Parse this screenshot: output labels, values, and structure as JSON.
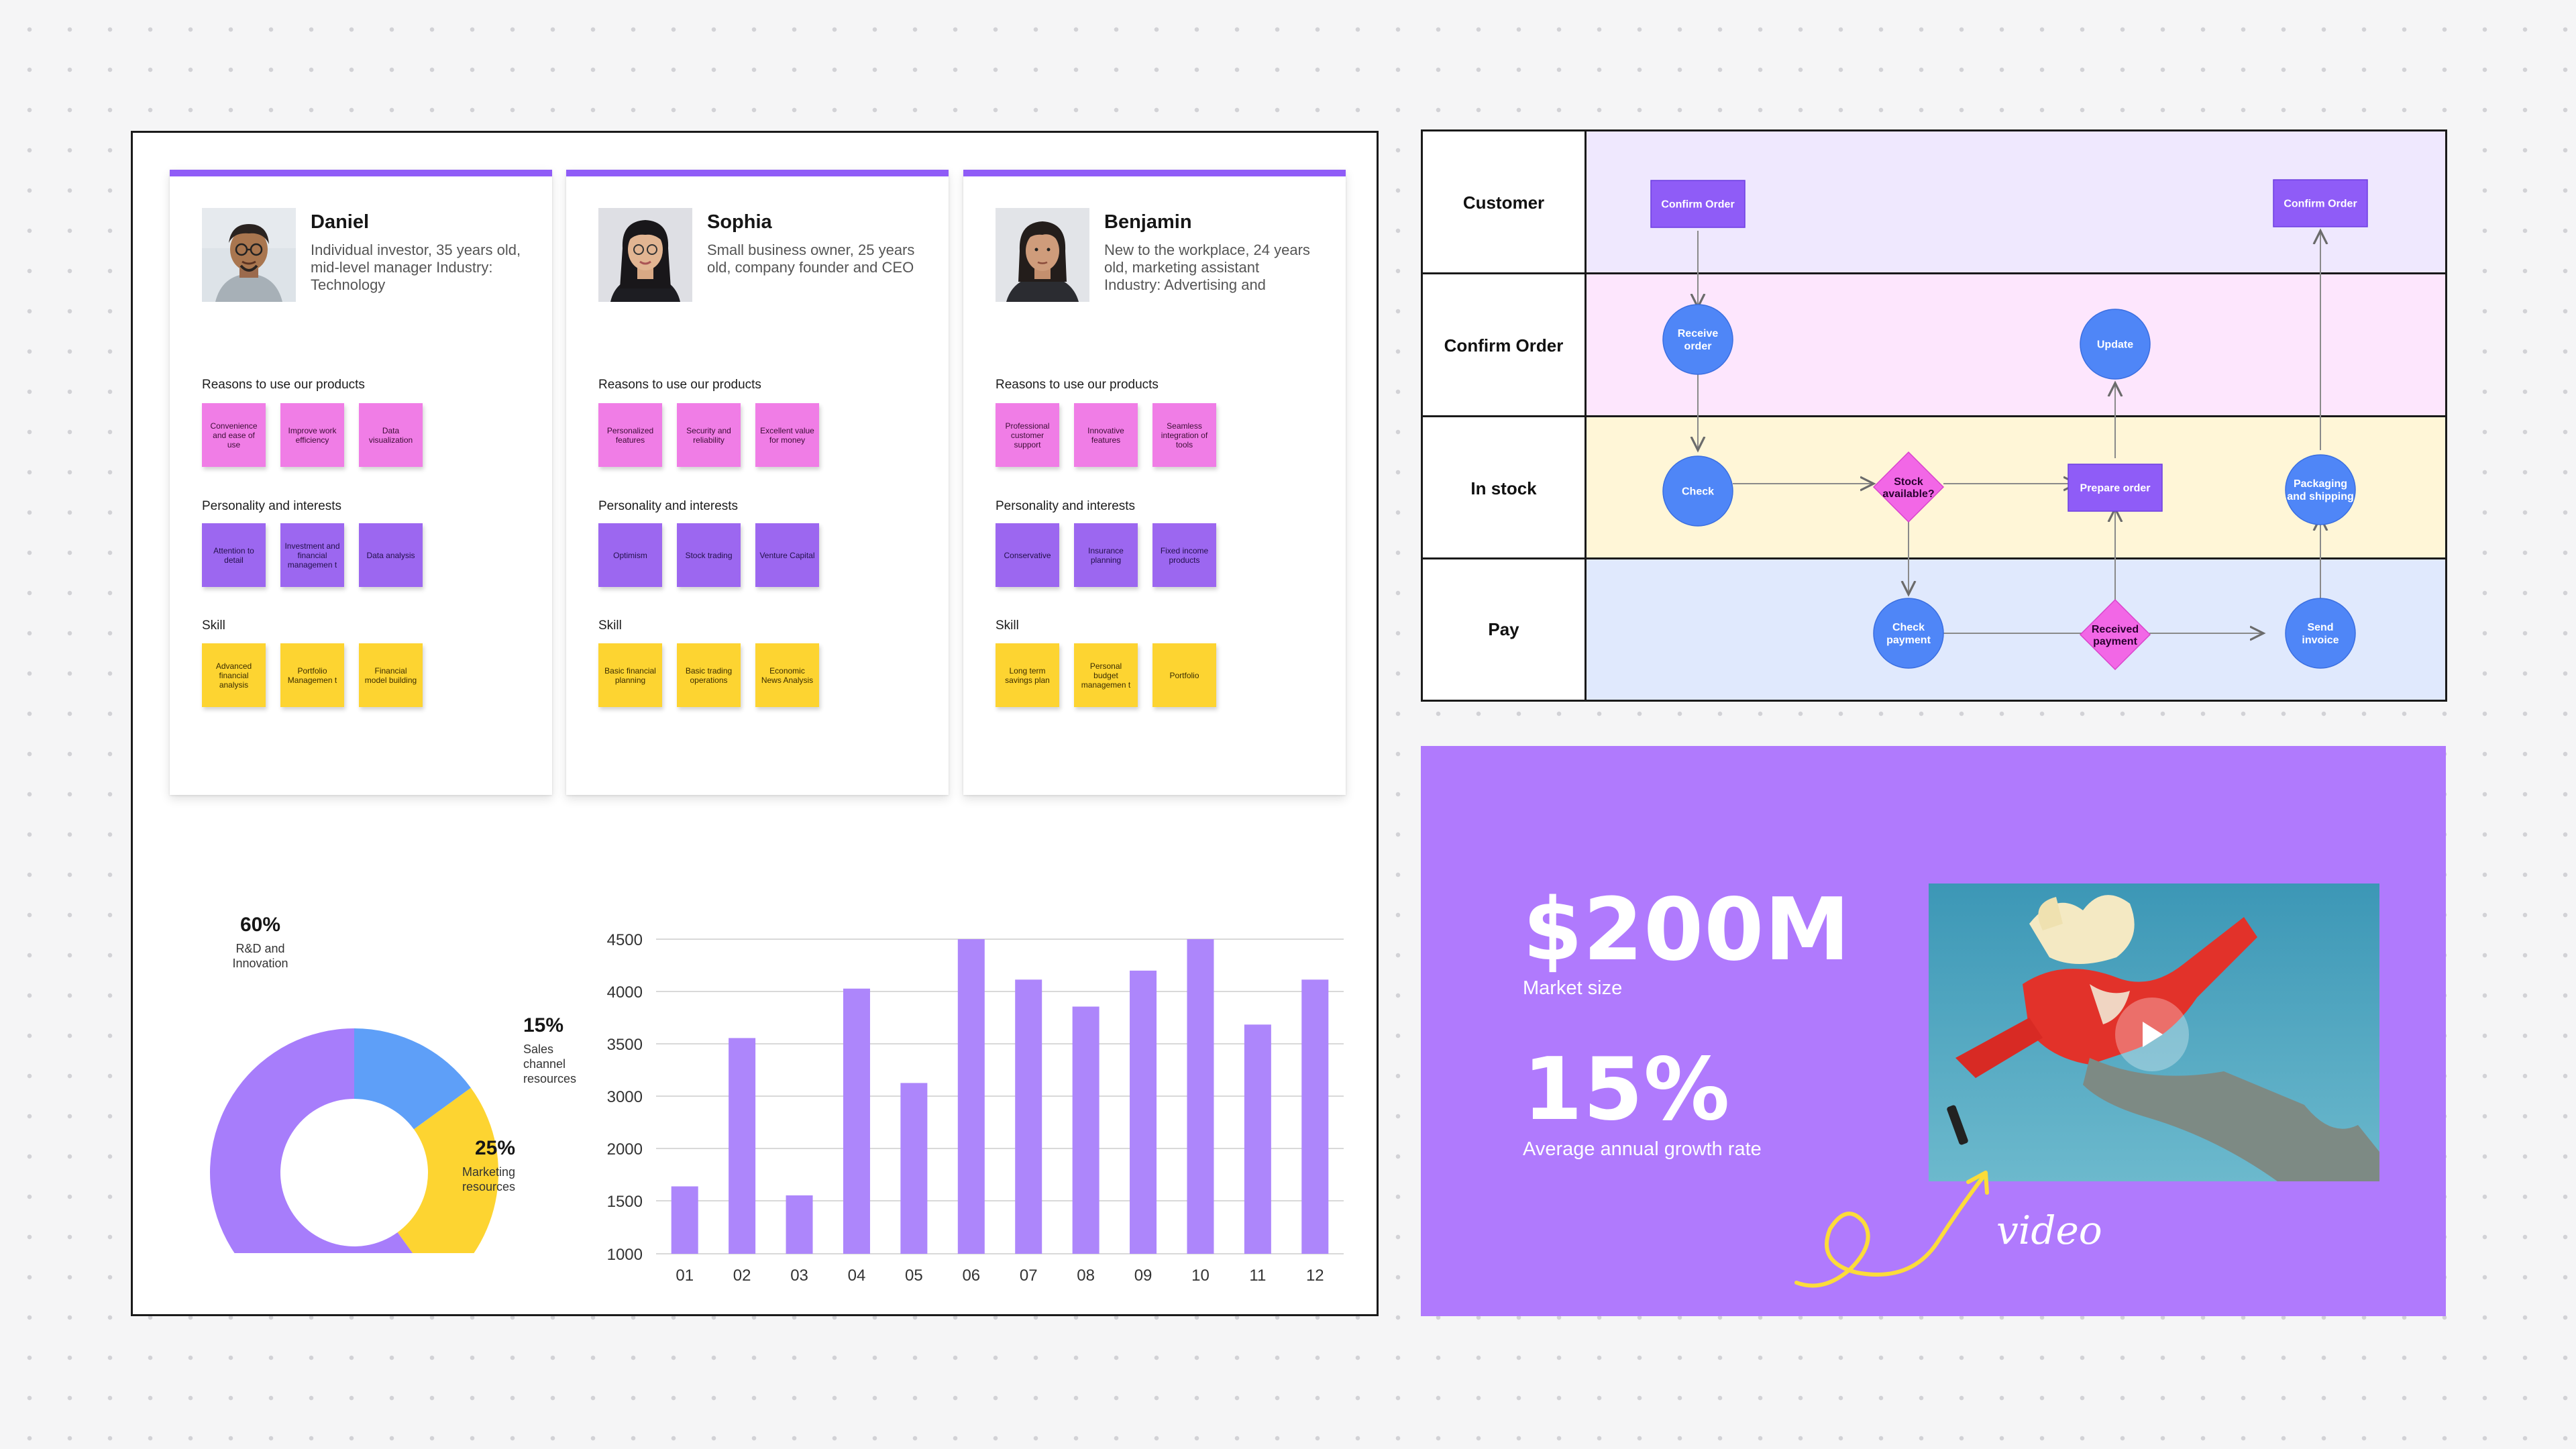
{
  "personas": [
    {
      "name": "Daniel",
      "description": "Individual investor, 35 years old, mid-level manager Industry: Technology",
      "reasons_title": "Reasons to use our products",
      "reasons": [
        "Convenience and ease of use",
        "Improve work efficiency",
        "Data visualization"
      ],
      "personality_title": "Personality and interests",
      "personality": [
        "Attention to detail",
        "Investment and financial managemen t",
        "Data analysis"
      ],
      "skill_title": "Skill",
      "skills": [
        "Advanced financial analysis",
        "Portfolio Managemen t",
        "Financial model building"
      ]
    },
    {
      "name": "Sophia",
      "description": "Small business owner, 25 years old, company founder and CEO",
      "reasons_title": "Reasons to use our products",
      "reasons": [
        "Personalized features",
        "Security and reliability",
        "Excellent value for money"
      ],
      "personality_title": "Personality and interests",
      "personality": [
        "Optimism",
        "Stock trading",
        "Venture Capital"
      ],
      "skill_title": "Skill",
      "skills": [
        "Basic financial planning",
        "Basic trading operations",
        "Economic News Analysis"
      ]
    },
    {
      "name": "Benjamin",
      "description": "New to the workplace, 24 years old, marketing assistant Industry: Advertising and",
      "reasons_title": "Reasons to use our products",
      "reasons": [
        "Professional customer support",
        "Innovative features",
        "Seamless integration of tools"
      ],
      "personality_title": "Personality and interests",
      "personality": [
        "Conservative",
        "Insurance planning",
        "Fixed income products"
      ],
      "skill_title": "Skill",
      "skills": [
        "Long term savings plan",
        "Personal budget managemen t",
        "Portfolio"
      ]
    }
  ],
  "donut": {
    "segments": [
      {
        "pct_label": "60%",
        "label_lines": [
          "R&D and",
          "Innovation"
        ],
        "value": 60,
        "color": "#a77dfb"
      },
      {
        "pct_label": "15%",
        "label_lines": [
          "Sales",
          "channel",
          "resources"
        ],
        "value": 15,
        "color": "#5e9ff8"
      },
      {
        "pct_label": "25%",
        "label_lines": [
          "Marketing",
          "resources"
        ],
        "value": 25,
        "color": "#fdd431"
      }
    ]
  },
  "chart_data": {
    "type": "bar",
    "categories": [
      "01",
      "02",
      "03",
      "04",
      "05",
      "06",
      "07",
      "08",
      "09",
      "10",
      "11",
      "12"
    ],
    "values": [
      1750,
      3400,
      1650,
      3950,
      2900,
      4500,
      4050,
      3750,
      4150,
      4500,
      3550,
      4050
    ],
    "yticks": [
      "4500",
      "4000",
      "3500",
      "3000",
      "2000",
      "1500",
      "1000"
    ],
    "ylim": [
      1000,
      4500
    ],
    "title": "",
    "xlabel": "",
    "ylabel": "",
    "grid": true,
    "bar_color": "#ad86fb"
  },
  "flow": {
    "lanes": [
      {
        "label": "Customer",
        "color": "#efe8fe"
      },
      {
        "label": "Confirm Order",
        "color": "#fde6fd"
      },
      {
        "label": "In stock",
        "color": "#fff6d7"
      },
      {
        "label": "Pay",
        "color": "#e0e9fd"
      }
    ],
    "nodes": {
      "confirm1": [
        "Confirm Order"
      ],
      "confirm2": [
        "Confirm Order"
      ],
      "receive": [
        "Receive",
        "order"
      ],
      "update": [
        "Update"
      ],
      "check": [
        "Check"
      ],
      "stock": [
        "Stock",
        "available?"
      ],
      "prepare": [
        "Prepare order"
      ],
      "packaging": [
        "Packaging",
        "and shipping"
      ],
      "checkpay": [
        "Check",
        "payment"
      ],
      "received": [
        "Received",
        "payment"
      ],
      "invoice": [
        "Send",
        "invoice"
      ]
    },
    "colors": {
      "rect": "#8f5cf7",
      "circle": "#4f86f7",
      "diamond": "#f267e6"
    }
  },
  "market": {
    "size_value": "$200M",
    "size_label": "Market size",
    "growth_value": "15%",
    "growth_label": "Average annual growth rate",
    "video_caption": "video"
  }
}
